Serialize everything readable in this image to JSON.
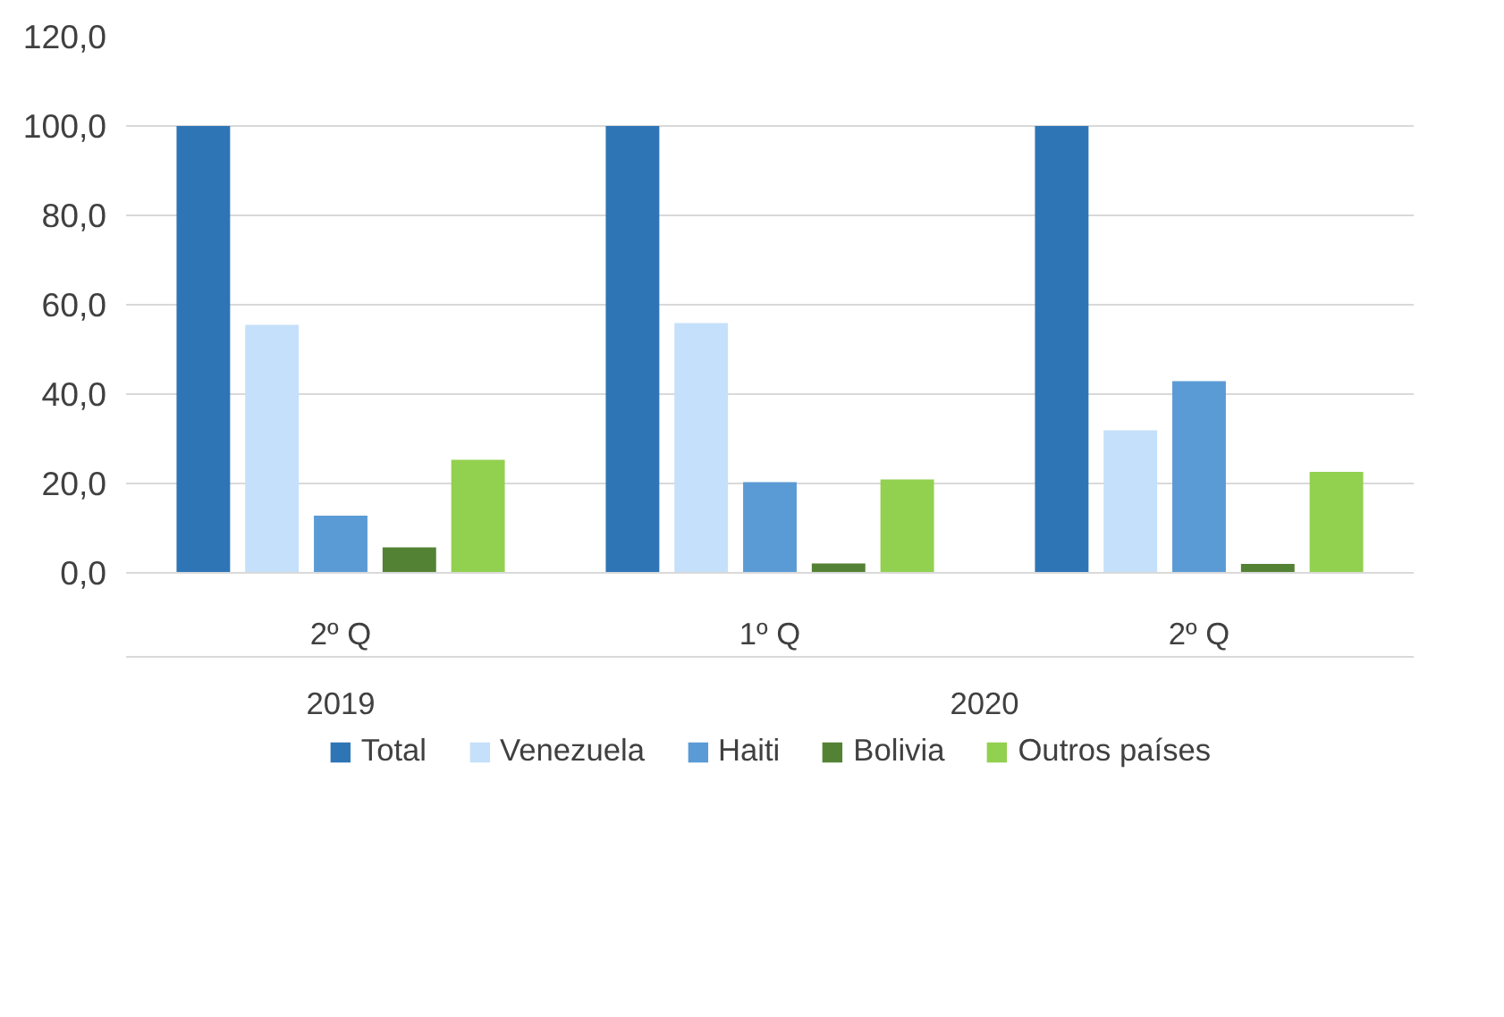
{
  "chart_data": {
    "type": "bar",
    "categories": [
      "2º Q",
      "1º Q",
      "2º Q"
    ],
    "annotations": [
      "2019",
      "2020"
    ],
    "series": [
      {
        "name": "Total",
        "color": "#2e75b6",
        "values": [
          100,
          100,
          100
        ]
      },
      {
        "name": "Venezuela",
        "color": "#c5e0fa",
        "values": [
          55.5,
          55.9,
          31.9
        ]
      },
      {
        "name": "Haiti",
        "color": "#5b9bd5",
        "values": [
          12.8,
          20.3,
          42.9
        ]
      },
      {
        "name": "Bolivia",
        "color": "#548235",
        "values": [
          5.7,
          2.1,
          2.0
        ]
      },
      {
        "name": "Outros países",
        "color": "#92d050",
        "values": [
          25.3,
          20.9,
          22.6
        ]
      }
    ],
    "ylim": [
      0,
      120
    ],
    "yticks": [
      {
        "value": 0,
        "label": "0,0"
      },
      {
        "value": 20,
        "label": "20,0"
      },
      {
        "value": 40,
        "label": "40,0"
      },
      {
        "value": 60,
        "label": "60,0"
      },
      {
        "value": 80,
        "label": "80,0"
      },
      {
        "value": 100,
        "label": "100,0"
      },
      {
        "value": 120,
        "label": "120,0"
      }
    ],
    "grid": "y",
    "legend": "bottom"
  }
}
